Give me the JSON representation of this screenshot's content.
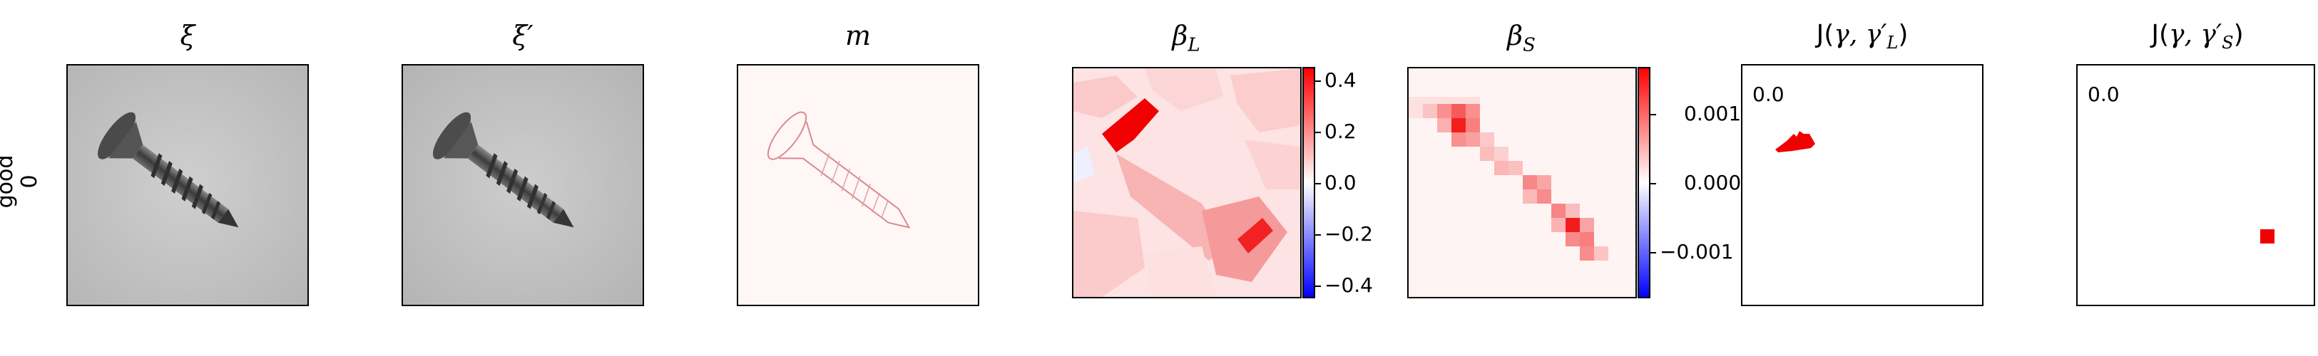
{
  "row": {
    "label_line1": "good",
    "label_line2": "0"
  },
  "panels": {
    "xi": {
      "title": "ξ"
    },
    "xi_prime": {
      "title": "ξ′"
    },
    "m": {
      "title": "m"
    },
    "beta_l": {
      "title": "β",
      "title_sub": "L",
      "colorbar_ticks": [
        "0.4",
        "0.2",
        "0.0",
        "−0.2",
        "−0.4"
      ]
    },
    "beta_s": {
      "title": "β",
      "title_sub": "S",
      "colorbar_ticks": [
        "0.001",
        "0.000",
        "−0.001"
      ]
    },
    "j_l": {
      "title": "J(γ, γ′L)",
      "title_main": "J(",
      "title_args": "γ, γ′",
      "title_sub": "L",
      "title_close": ")",
      "value": "0.0"
    },
    "j_s": {
      "title": "J(γ, γ′S)",
      "title_main": "J(",
      "title_args": "γ, γ′",
      "title_sub": "S",
      "title_close": ")",
      "value": "0.0"
    }
  },
  "colors": {
    "positive": "#ff0000",
    "zero": "#ffffff",
    "negative": "#0000ff",
    "photo_bg": "#c8c8c8"
  }
}
